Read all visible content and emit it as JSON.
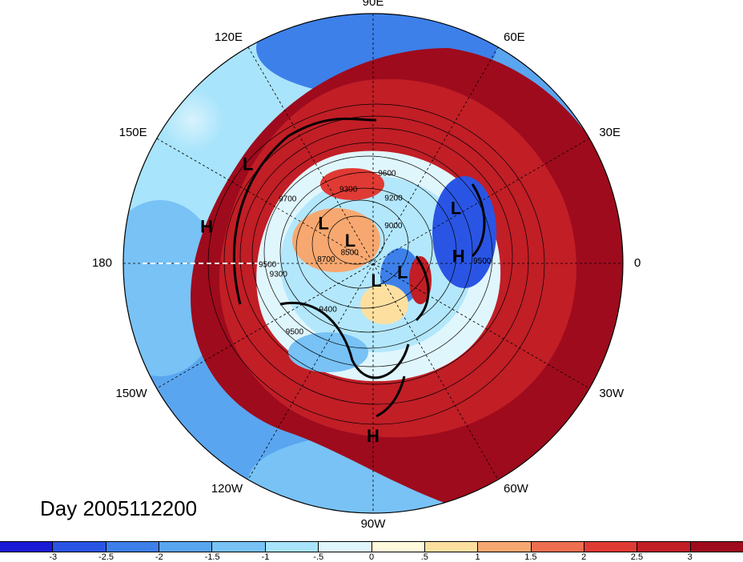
{
  "title": "Day 2005112200",
  "projection": "north-polar-stereographic",
  "longitude_labels": [
    {
      "text": "90E",
      "lon": 90
    },
    {
      "text": "60E",
      "lon": 60
    },
    {
      "text": "30E",
      "lon": 30
    },
    {
      "text": "0",
      "lon": 0
    },
    {
      "text": "30W",
      "lon": -30
    },
    {
      "text": "60W",
      "lon": -60
    },
    {
      "text": "90W",
      "lon": -90
    },
    {
      "text": "120W",
      "lon": -120
    },
    {
      "text": "150W",
      "lon": -150
    },
    {
      "text": "180",
      "lon": 180
    },
    {
      "text": "150E",
      "lon": 150
    },
    {
      "text": "120E",
      "lon": 120
    }
  ],
  "pressure_centers": [
    {
      "text": "L",
      "lon": 142,
      "lat": 42
    },
    {
      "text": "H",
      "lon": 168,
      "lat": 39
    },
    {
      "text": "L",
      "lon": 142,
      "lat": 70
    },
    {
      "text": "L",
      "lon": 137,
      "lat": 80
    },
    {
      "text": "L",
      "lon": 33,
      "lat": 59
    },
    {
      "text": "H",
      "lon": 4,
      "lat": 63
    },
    {
      "text": "L",
      "lon": -19,
      "lat": 80
    },
    {
      "text": "L",
      "lon": -80,
      "lat": 84
    },
    {
      "text": "H",
      "lon": -90,
      "lat": 38
    }
  ],
  "contour_labels": [
    {
      "text": "9600",
      "lon": 81,
      "lat": 62
    },
    {
      "text": "9300",
      "lon": 109,
      "lat": 66
    },
    {
      "text": "9200",
      "lon": 72,
      "lat": 69
    },
    {
      "text": "9700",
      "lon": 144,
      "lat": 57
    },
    {
      "text": "9000",
      "lon": 60,
      "lat": 77
    },
    {
      "text": "8500",
      "lon": 160,
      "lat": 82
    },
    {
      "text": "8700",
      "lon": 178,
      "lat": 75
    },
    {
      "text": "9300",
      "lon": -172,
      "lat": 60
    },
    {
      "text": "9500",
      "lon": -178,
      "lat": 57
    },
    {
      "text": "9400",
      "lon": -133,
      "lat": 69
    },
    {
      "text": "9500",
      "lon": -138,
      "lat": 57
    },
    {
      "text": "9500",
      "lon": 0,
      "lat": 56
    }
  ],
  "colorbar": {
    "ticks": [
      "-3",
      "-2.5",
      "-2",
      "-1.5",
      "-1",
      "-.5",
      "0",
      ".5",
      "1",
      "1.5",
      "2",
      "2.5",
      "3"
    ],
    "colors": [
      "#1a1ad6",
      "#2a55e4",
      "#3d80ea",
      "#5aa5ef",
      "#78c2f5",
      "#a8e4fb",
      "#e0f6fd",
      "#fffadc",
      "#fde0a0",
      "#f7a870",
      "#ee6e50",
      "#e03a34",
      "#c11e26",
      "#9e0b1d"
    ]
  }
}
